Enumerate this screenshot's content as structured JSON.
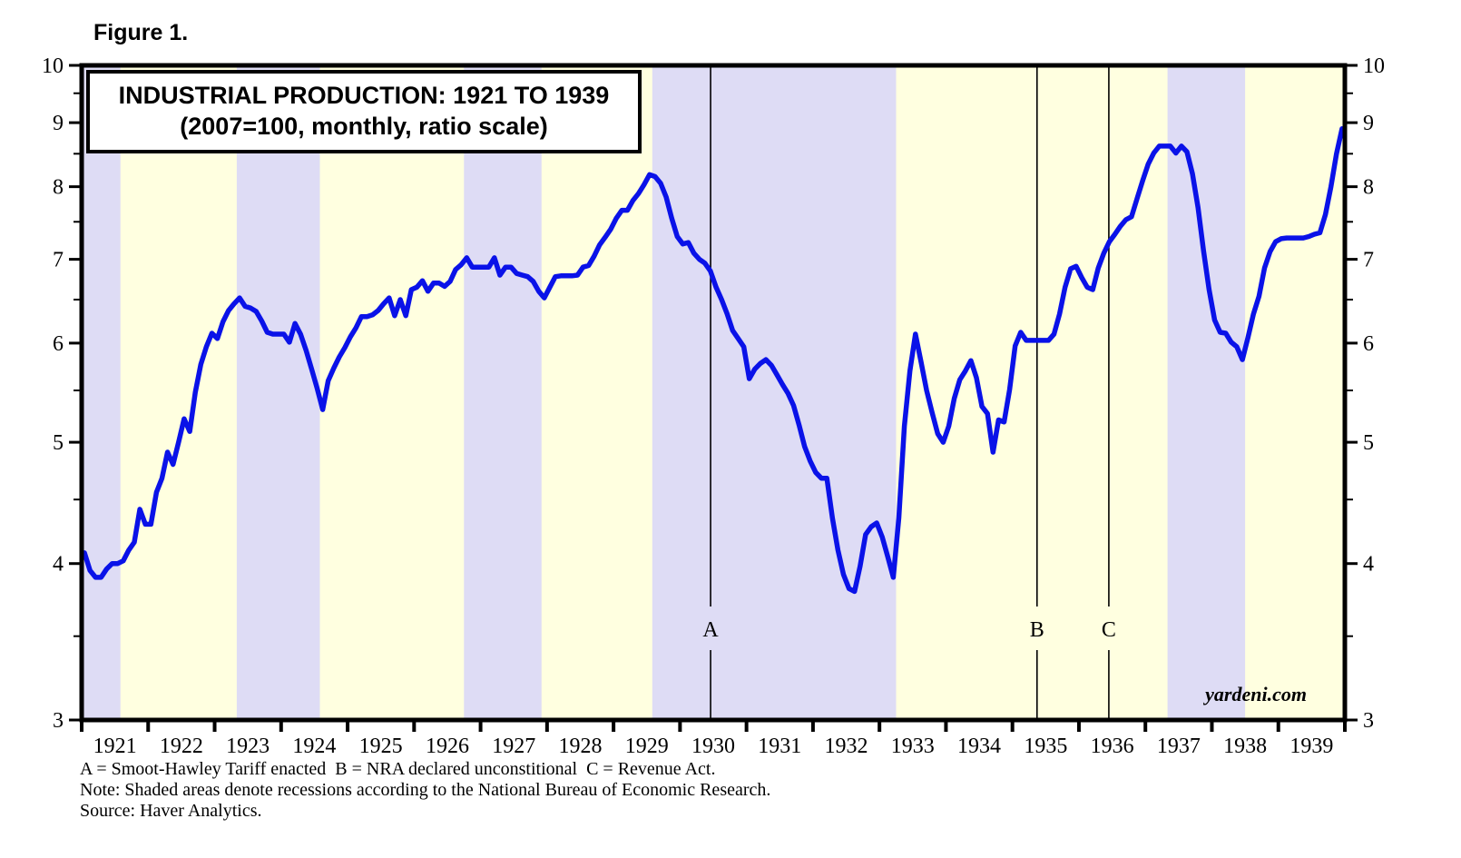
{
  "figure_label": "Figure 1.",
  "title_box": {
    "line1": "INDUSTRIAL PRODUCTION: 1921 TO 1939",
    "line2": "(2007=100, monthly, ratio scale)"
  },
  "watermark": "yardeni.com",
  "footnotes": {
    "line1": "A = Smoot-Hawley Tariff enacted  B = NRA declared unconstitional  C = Revenue Act.",
    "line2": "Note: Shaded areas denote recessions according to the National Bureau of Economic Research.",
    "line3": "Source: Haver Analytics."
  },
  "colors": {
    "background_yellow": "#ffffe0",
    "recession_lavender": "#dedcf5",
    "line_blue": "#0a12e8",
    "frame_black": "#000000"
  },
  "chart_data": {
    "type": "line",
    "title": "INDUSTRIAL PRODUCTION: 1921 TO 1939",
    "subtitle": "(2007=100, monthly, ratio scale)",
    "scale": "logarithmic (ratio scale)",
    "ylim": [
      3,
      10
    ],
    "y_ticks_major": [
      10,
      9,
      8,
      7,
      6,
      5,
      4,
      3
    ],
    "y_ticks_minor": [
      9.5,
      8.5,
      7.5,
      6.5,
      5.5,
      4.5,
      3.5
    ],
    "x_years": [
      1921,
      1922,
      1923,
      1924,
      1925,
      1926,
      1927,
      1928,
      1929,
      1930,
      1931,
      1932,
      1933,
      1934,
      1935,
      1936,
      1937,
      1938,
      1939
    ],
    "x_range": [
      1921.0,
      1940.0
    ],
    "grid": false,
    "legend": "none",
    "recession_bands": [
      {
        "start": 1921.0,
        "end": 1921.583
      },
      {
        "start": 1923.333,
        "end": 1924.583
      },
      {
        "start": 1926.75,
        "end": 1927.917
      },
      {
        "start": 1929.583,
        "end": 1933.25
      },
      {
        "start": 1937.333,
        "end": 1938.5
      }
    ],
    "events": [
      {
        "label": "A",
        "x": 1930.46,
        "description": "Smoot-Hawley Tariff enacted"
      },
      {
        "label": "B",
        "x": 1935.37,
        "description": "NRA declared unconstitional"
      },
      {
        "label": "C",
        "x": 1936.45,
        "description": "Revenue Act"
      }
    ],
    "series": [
      {
        "name": "Industrial Production index (2007=100)",
        "frequency": "monthly",
        "start": "1921-01",
        "end": "1939-12",
        "values": [
          4.08,
          3.95,
          3.9,
          3.9,
          3.96,
          4.0,
          4.0,
          4.02,
          4.1,
          4.16,
          4.42,
          4.3,
          4.3,
          4.56,
          4.68,
          4.91,
          4.8,
          5.0,
          5.22,
          5.1,
          5.48,
          5.77,
          5.96,
          6.11,
          6.05,
          6.24,
          6.37,
          6.45,
          6.52,
          6.42,
          6.4,
          6.36,
          6.25,
          6.12,
          6.1,
          6.1,
          6.1,
          6.01,
          6.22,
          6.1,
          5.92,
          5.72,
          5.52,
          5.31,
          5.6,
          5.73,
          5.85,
          5.95,
          6.07,
          6.17,
          6.3,
          6.3,
          6.32,
          6.37,
          6.45,
          6.52,
          6.31,
          6.5,
          6.31,
          6.62,
          6.65,
          6.73,
          6.6,
          6.7,
          6.7,
          6.66,
          6.72,
          6.87,
          6.93,
          7.02,
          6.9,
          6.9,
          6.9,
          6.9,
          7.02,
          6.8,
          6.9,
          6.9,
          6.82,
          6.8,
          6.78,
          6.72,
          6.6,
          6.52,
          6.65,
          6.78,
          6.79,
          6.79,
          6.79,
          6.8,
          6.9,
          6.92,
          7.04,
          7.19,
          7.29,
          7.4,
          7.55,
          7.66,
          7.66,
          7.8,
          7.9,
          8.03,
          8.18,
          8.15,
          8.05,
          7.85,
          7.55,
          7.3,
          7.2,
          7.22,
          7.08,
          7.0,
          6.95,
          6.85,
          6.65,
          6.5,
          6.33,
          6.14,
          6.05,
          5.96,
          5.62,
          5.72,
          5.78,
          5.82,
          5.76,
          5.66,
          5.56,
          5.47,
          5.35,
          5.16,
          4.96,
          4.83,
          4.73,
          4.68,
          4.68,
          4.35,
          4.1,
          3.92,
          3.82,
          3.8,
          3.98,
          4.22,
          4.28,
          4.31,
          4.2,
          4.05,
          3.9,
          4.35,
          5.15,
          5.7,
          6.1,
          5.8,
          5.5,
          5.28,
          5.08,
          5.0,
          5.15,
          5.42,
          5.61,
          5.7,
          5.81,
          5.63,
          5.34,
          5.27,
          4.91,
          5.21,
          5.19,
          5.51,
          5.97,
          6.12,
          6.03,
          6.03,
          6.03,
          6.03,
          6.03,
          6.1,
          6.33,
          6.65,
          6.88,
          6.91,
          6.77,
          6.65,
          6.62,
          6.89,
          7.08,
          7.23,
          7.33,
          7.44,
          7.53,
          7.57,
          7.83,
          8.09,
          8.34,
          8.51,
          8.62,
          8.62,
          8.62,
          8.51,
          8.62,
          8.53,
          8.19,
          7.7,
          7.11,
          6.62,
          6.26,
          6.12,
          6.11,
          6.01,
          5.96,
          5.82,
          6.06,
          6.33,
          6.54,
          6.89,
          7.1,
          7.23,
          7.27,
          7.28,
          7.28,
          7.28,
          7.28,
          7.3,
          7.33,
          7.35,
          7.6,
          8.0,
          8.5,
          8.9
        ]
      }
    ]
  }
}
